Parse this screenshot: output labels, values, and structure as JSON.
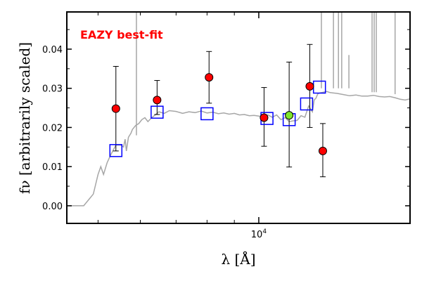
{
  "chart_data": {
    "type": "scatter",
    "title": "",
    "annotation": "EAZY best-fit",
    "colors": {
      "annotation": "#ff0000",
      "sed_curve": "#a6a6a6",
      "model_box": "#0000ff",
      "point_red": "#ff0000",
      "point_green": "#7fe52a",
      "errorbar": "#000000"
    },
    "x_axis": {
      "label": "λ [Å]",
      "scale": "log",
      "range_angstrom": [
        4370,
        19200
      ],
      "major_tick": {
        "value": 10000,
        "label": "10^4"
      }
    },
    "y_axis": {
      "label": "fν [arbitrarily scaled]",
      "range": [
        -0.0045,
        0.0495
      ],
      "ticks": [
        0.0,
        0.01,
        0.02,
        0.03,
        0.04
      ],
      "tick_labels": [
        "0.00",
        "0.01",
        "0.02",
        "0.03",
        "0.04"
      ]
    },
    "observed_points": [
      {
        "x": 5400,
        "y": 0.0248,
        "err_low": 0.0108,
        "err_high": 0.0108,
        "color": "red"
      },
      {
        "x": 6450,
        "y": 0.027,
        "err_low": 0.0037,
        "err_high": 0.005,
        "color": "red"
      },
      {
        "x": 8070,
        "y": 0.0328,
        "err_low": 0.0066,
        "err_high": 0.0066,
        "color": "red"
      },
      {
        "x": 10230,
        "y": 0.0225,
        "err_low": 0.0073,
        "err_high": 0.0077,
        "color": "red"
      },
      {
        "x": 11400,
        "y": 0.0231,
        "err_low": 0.0132,
        "err_high": 0.0136,
        "color": "green"
      },
      {
        "x": 12460,
        "y": 0.0305,
        "err_low": 0.0105,
        "err_high": 0.0107,
        "color": "red"
      },
      {
        "x": 13180,
        "y": 0.014,
        "err_low": 0.0066,
        "err_high": 0.007,
        "color": "red"
      }
    ],
    "model_photometry": [
      {
        "x": 5400,
        "y": 0.0141
      },
      {
        "x": 6450,
        "y": 0.0239
      },
      {
        "x": 8000,
        "y": 0.0235
      },
      {
        "x": 10360,
        "y": 0.0223
      },
      {
        "x": 11400,
        "y": 0.022
      },
      {
        "x": 12290,
        "y": 0.026
      },
      {
        "x": 12990,
        "y": 0.0303
      }
    ],
    "sed_curve": {
      "x": [
        4370,
        4700,
        4900,
        5000,
        5060,
        5120,
        5200,
        5280,
        5400,
        5520,
        5580,
        5620,
        5650,
        5700,
        5760,
        5800,
        5880,
        5960,
        6040,
        6120,
        6200,
        6300,
        6400,
        6500,
        6650,
        6800,
        7000,
        7200,
        7400,
        7600,
        7800,
        8000,
        8200,
        8400,
        8600,
        8800,
        9000,
        9200,
        9400,
        9600,
        9800,
        10000,
        10200,
        10400,
        10600,
        10800,
        11000,
        11200,
        11400,
        11600,
        11800,
        12000,
        12200,
        12400,
        12600,
        12700,
        12800,
        12900,
        13000,
        13200,
        13400,
        13600,
        13800,
        14000,
        14400,
        14800,
        15200,
        15600,
        16000,
        16400,
        16800,
        17200,
        17600,
        18000,
        18400,
        18800,
        19200
      ],
      "y": [
        0.0,
        0.0,
        0.003,
        0.008,
        0.01,
        0.008,
        0.011,
        0.013,
        0.0155,
        0.0155,
        0.015,
        0.017,
        0.014,
        0.0175,
        0.0185,
        0.0195,
        0.0205,
        0.021,
        0.022,
        0.0225,
        0.0215,
        0.0225,
        0.0232,
        0.024,
        0.0236,
        0.0243,
        0.0241,
        0.0236,
        0.024,
        0.0238,
        0.0242,
        0.0237,
        0.0239,
        0.0235,
        0.0237,
        0.0234,
        0.0236,
        0.0232,
        0.0233,
        0.023,
        0.0231,
        0.0229,
        0.0228,
        0.0232,
        0.0226,
        0.0232,
        0.022,
        0.0225,
        0.0215,
        0.0217,
        0.0218,
        0.023,
        0.0226,
        0.0255,
        0.024,
        0.027,
        0.0275,
        0.0286,
        0.0288,
        0.029,
        0.0292,
        0.0289,
        0.0288,
        0.0287,
        0.0284,
        0.0281,
        0.0283,
        0.028,
        0.028,
        0.0282,
        0.0279,
        0.0278,
        0.0279,
        0.0276,
        0.0272,
        0.027,
        0.0273
      ]
    },
    "emission_lines": [
      {
        "x": 5900,
        "peak": 0.0495,
        "base": 0.018
      },
      {
        "x": 13100,
        "peak": 0.0495,
        "base": 0.03
      },
      {
        "x": 13800,
        "peak": 0.0495,
        "base": 0.03
      },
      {
        "x": 14100,
        "peak": 0.0495,
        "base": 0.03
      },
      {
        "x": 14300,
        "peak": 0.0495,
        "base": 0.03
      },
      {
        "x": 14750,
        "peak": 0.0385,
        "base": 0.03
      },
      {
        "x": 16300,
        "peak": 0.0495,
        "base": 0.029
      },
      {
        "x": 16450,
        "peak": 0.0495,
        "base": 0.029
      },
      {
        "x": 16600,
        "peak": 0.0495,
        "base": 0.029
      },
      {
        "x": 18000,
        "peak": 0.0495,
        "base": 0.0285
      }
    ]
  }
}
